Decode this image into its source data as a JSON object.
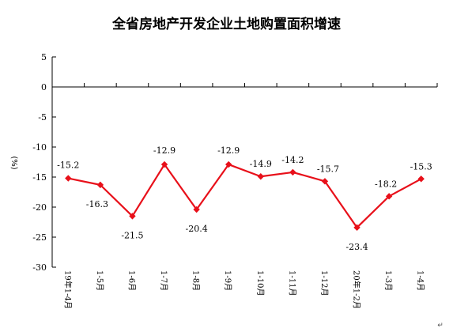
{
  "chart_data": {
    "type": "line",
    "title": "全省房地产开发企业土地购置面积增速",
    "ylabel": "(%)",
    "xlabel": "",
    "ylim": [
      -30,
      5
    ],
    "yticks": [
      5,
      0,
      -5,
      -10,
      -15,
      -20,
      -25,
      -30
    ],
    "grid": false,
    "legend": "none",
    "categories": [
      "19年1-4月",
      "1-5月",
      "1-6月",
      "1-7月",
      "1-8月",
      "1-9月",
      "1-10月",
      "1-11月",
      "1-12月",
      "20年1-2月",
      "1-3月",
      "1-4月"
    ],
    "series": [
      {
        "values": [
          -15.2,
          -16.3,
          -21.5,
          -12.9,
          -20.4,
          -12.9,
          -14.9,
          -14.2,
          -15.7,
          -23.4,
          -18.2,
          -15.3
        ],
        "labels": [
          "-15.2",
          "-16.3",
          "-21.5",
          "-12.9",
          "-20.4",
          "-12.9",
          "-14.9",
          "-14.2",
          "-15.7",
          "-23.4",
          "-18.2",
          "-15.3"
        ],
        "color": "#e8101a",
        "marker": "diamond"
      }
    ]
  },
  "footer": {
    "corner_mark": "↵"
  }
}
